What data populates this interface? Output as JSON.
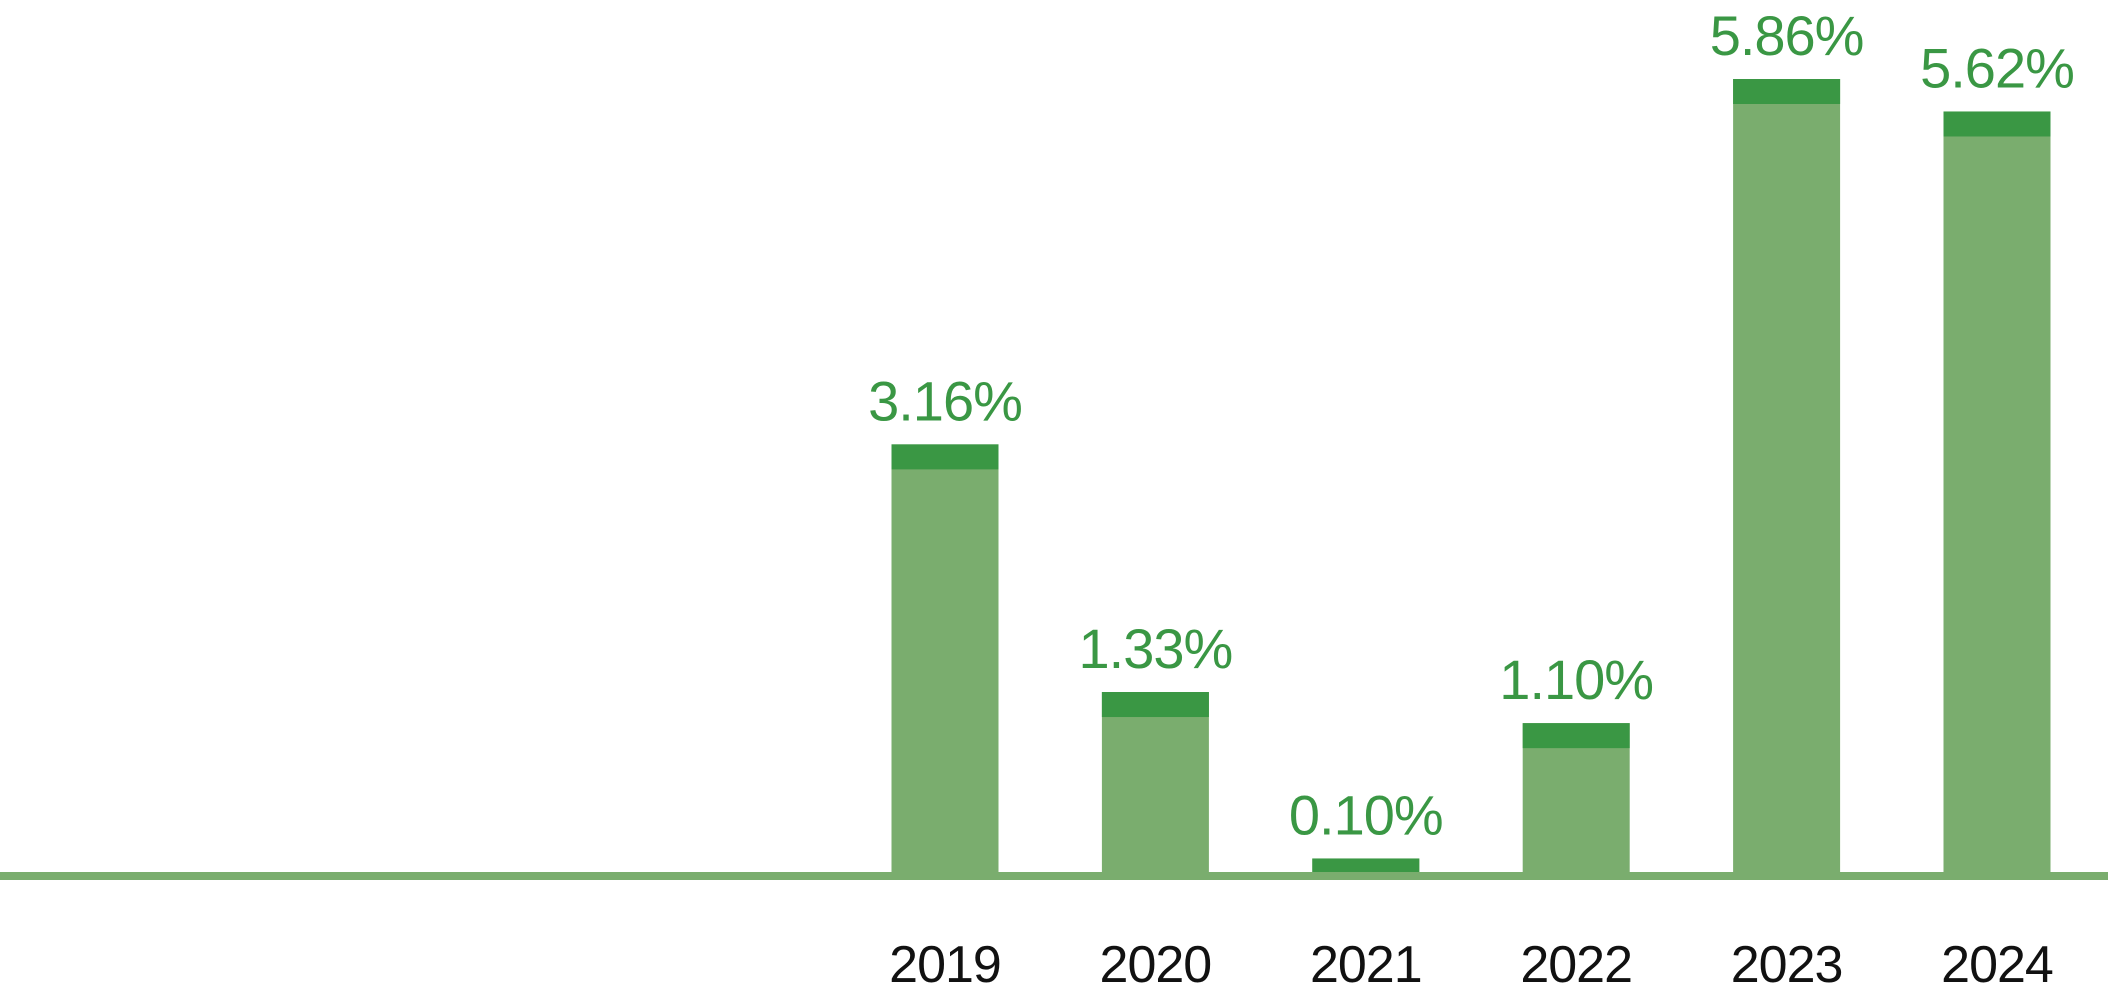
{
  "chart_data": {
    "type": "bar",
    "categories": [
      "2019",
      "2020",
      "2021",
      "2022",
      "2023",
      "2024"
    ],
    "values": [
      3.16,
      1.33,
      0.1,
      1.1,
      5.86,
      5.62
    ],
    "data_labels": [
      "3.16%",
      "1.33%",
      "0.10%",
      "1.10%",
      "5.86%",
      "5.62%"
    ],
    "title": "",
    "xlabel": "",
    "ylabel": "",
    "ylim": [
      0,
      5.86
    ],
    "grid": false,
    "legend": "none"
  },
  "colors": {
    "bar_body": "#7aad6e",
    "bar_cap": "#3a9744",
    "value_label": "#3a9744",
    "tick_label": "#111111",
    "baseline": "#7aad6e",
    "background": "#ffffff"
  }
}
